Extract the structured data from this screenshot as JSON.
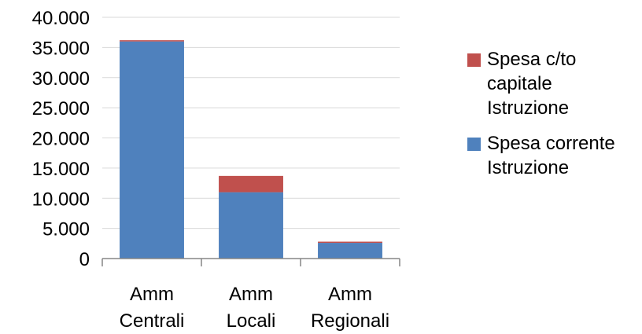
{
  "chart_data": {
    "type": "bar",
    "stacked": true,
    "categories": [
      "Amm\nCentrali",
      "Amm\nLocali",
      "Amm\nRegionali"
    ],
    "series": [
      {
        "name": "Spesa corrente\nIstruzione",
        "color": "#4F81BD",
        "values": [
          36000,
          11000,
          2600
        ]
      },
      {
        "name": "Spesa c/to\ncapitale\nIstruzione",
        "color": "#C0504D",
        "values": [
          200,
          2700,
          200
        ]
      }
    ],
    "ylim": [
      0,
      40000
    ],
    "yticks": [
      "0",
      "5.000",
      "10.000",
      "15.000",
      "20.000",
      "25.000",
      "30.000",
      "35.000",
      "40.000"
    ],
    "grid": true,
    "legend_position": "right",
    "title": "",
    "xlabel": "",
    "ylabel": ""
  }
}
